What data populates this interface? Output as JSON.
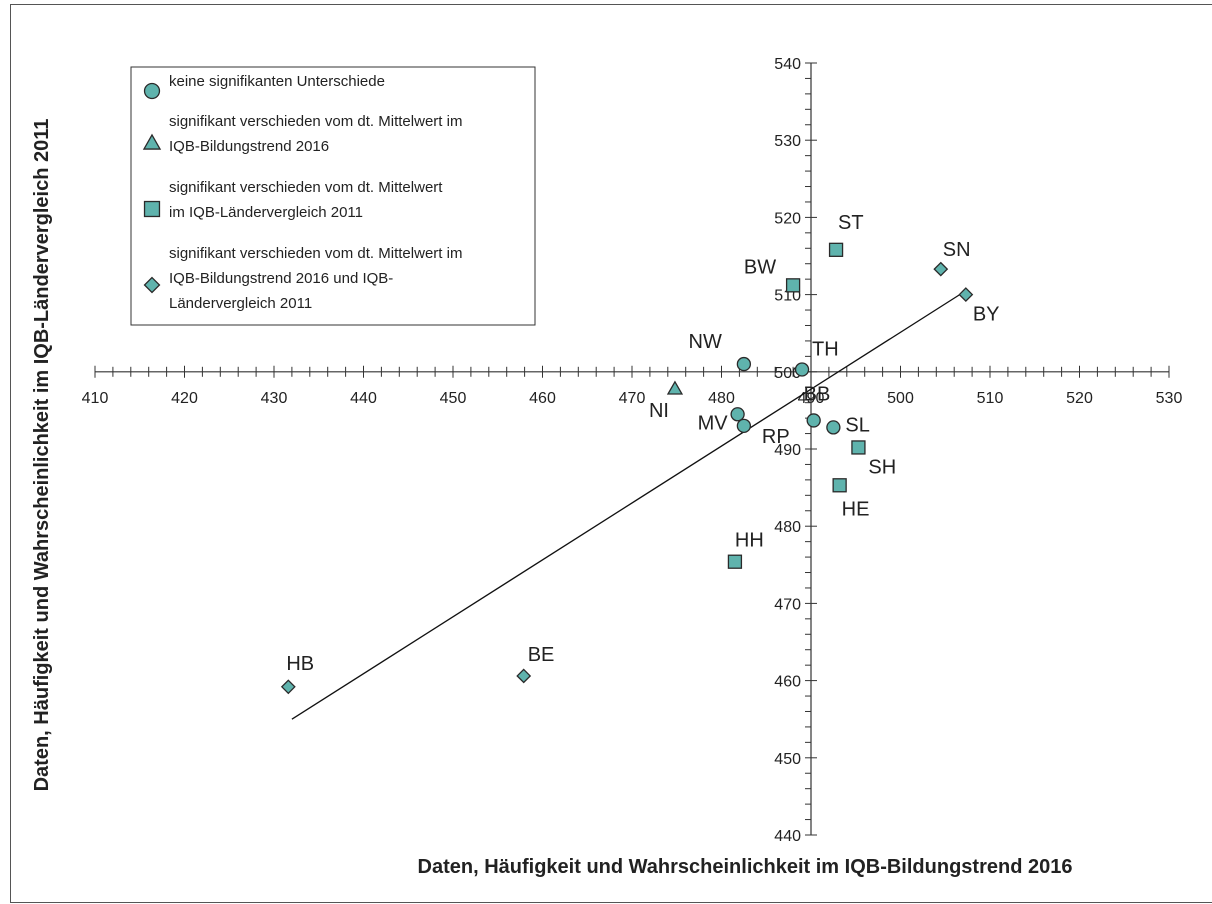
{
  "chart_data": {
    "type": "scatter",
    "xlabel": "Daten, Häufigkeit und Wahrscheinlichkeit im IQB-Bildungstrend 2016",
    "ylabel": "Daten, Häufigkeit und Wahrscheinlichkeit im IQB-Ländervergleich 2011",
    "xlim": [
      410,
      530
    ],
    "ylim": [
      440,
      540
    ],
    "x_ticks": [
      410,
      420,
      430,
      440,
      450,
      460,
      470,
      480,
      490,
      500,
      510,
      520,
      530
    ],
    "y_ticks": [
      440,
      450,
      460,
      470,
      480,
      490,
      500,
      510,
      520,
      530,
      540
    ],
    "axes_cross": {
      "x": 490,
      "y": 500
    },
    "grid": false,
    "legend_position": "top-left",
    "colors": {
      "marker_fill": "#5fb3ad",
      "marker_stroke": "#2a2a2a",
      "line": "#111111"
    },
    "series": [
      {
        "name": "keine signifikanten Unterschiede",
        "marker": "circle"
      },
      {
        "name": "signifikant verschieden vom dt. Mittelwert im IQB-Bildungstrend 2016",
        "marker": "triangle"
      },
      {
        "name": "signifikant verschieden vom dt. Mittelwert im IQB-Ländervergleich 2011",
        "marker": "square"
      },
      {
        "name": "signifikant verschieden vom dt. Mittelwert im IQB-Bildungstrend 2016 und IQB-Ländervergleich 2011",
        "marker": "diamond"
      }
    ],
    "legend_lines": [
      [
        "keine signifikanten Unterschiede"
      ],
      [
        "signifikant verschieden vom dt. Mittelwert im",
        "IQB-Bildungstrend 2016"
      ],
      [
        "signifikant verschieden vom dt. Mittelwert",
        "im IQB-Ländervergleich 2011"
      ],
      [
        "signifikant verschieden vom dt. Mittelwert im",
        "IQB-Bildungstrend 2016 und IQB-",
        "Ländervergleich 2011"
      ]
    ],
    "points": [
      {
        "label": "NW",
        "x": 482.5,
        "y": 501.0,
        "marker": "circle"
      },
      {
        "label": "TH",
        "x": 489.0,
        "y": 500.3,
        "marker": "circle"
      },
      {
        "label": "MV",
        "x": 481.8,
        "y": 494.5,
        "marker": "circle"
      },
      {
        "label": "RP",
        "x": 482.5,
        "y": 493.0,
        "marker": "circle"
      },
      {
        "label": "BB",
        "x": 490.3,
        "y": 493.7,
        "marker": "circle"
      },
      {
        "label": "SL",
        "x": 492.5,
        "y": 492.8,
        "marker": "circle"
      },
      {
        "label": "NI",
        "x": 474.8,
        "y": 497.8,
        "marker": "triangle"
      },
      {
        "label": "ST",
        "x": 492.8,
        "y": 515.8,
        "marker": "square"
      },
      {
        "label": "BW",
        "x": 488.0,
        "y": 511.2,
        "marker": "square"
      },
      {
        "label": "SH",
        "x": 495.3,
        "y": 490.2,
        "marker": "square"
      },
      {
        "label": "HE",
        "x": 493.2,
        "y": 485.3,
        "marker": "square"
      },
      {
        "label": "HH",
        "x": 481.5,
        "y": 475.4,
        "marker": "square"
      },
      {
        "label": "SN",
        "x": 504.5,
        "y": 513.3,
        "marker": "diamond"
      },
      {
        "label": "BY",
        "x": 507.3,
        "y": 510.0,
        "marker": "diamond"
      },
      {
        "label": "HB",
        "x": 431.6,
        "y": 459.2,
        "marker": "diamond"
      },
      {
        "label": "BE",
        "x": 457.9,
        "y": 460.6,
        "marker": "diamond"
      }
    ],
    "trendline": {
      "x": [
        432.0,
        507.3
      ],
      "y": [
        455.0,
        510.5
      ]
    }
  }
}
